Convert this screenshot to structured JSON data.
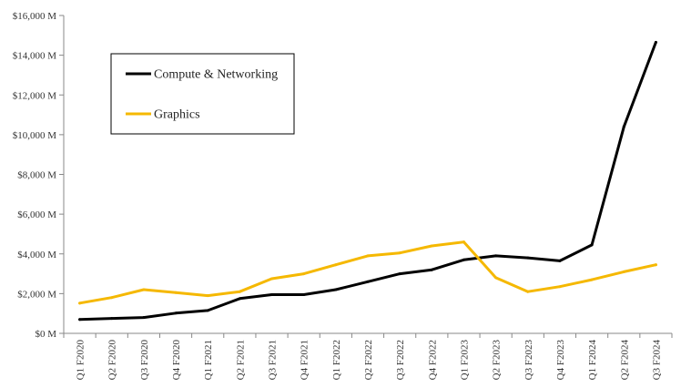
{
  "chart_data": {
    "type": "line",
    "title": "",
    "xlabel": "",
    "ylabel": "",
    "categories": [
      "Q1 F2020",
      "Q2 F2020",
      "Q3 F2020",
      "Q4 F2020",
      "Q1 F2021",
      "Q2 F2021",
      "Q3 F2021",
      "Q4 F2021",
      "Q1 F2022",
      "Q2 F2022",
      "Q3 F2022",
      "Q4 F2022",
      "Q1 F2023",
      "Q2 F2023",
      "Q3 F2023",
      "Q4 F2023",
      "Q1 F2024",
      "Q2 F2024",
      "Q3 F2024"
    ],
    "series": [
      {
        "name": "Compute & Networking",
        "color": "#000000",
        "values": [
          700,
          750,
          800,
          1020,
          1150,
          1750,
          1950,
          1950,
          2200,
          2600,
          3000,
          3200,
          3700,
          3900,
          3800,
          3650,
          4450,
          10400,
          14650
        ]
      },
      {
        "name": "Graphics",
        "color": "#F5B800",
        "values": [
          1520,
          1800,
          2200,
          2050,
          1900,
          2100,
          2750,
          3000,
          3450,
          3900,
          4050,
          4400,
          4600,
          2800,
          2100,
          2350,
          2700,
          3100,
          3450
        ]
      }
    ],
    "yticks": [
      0,
      2000,
      4000,
      6000,
      8000,
      10000,
      12000,
      14000,
      16000
    ],
    "ytick_labels": [
      "$0 M",
      "$2,000 M",
      "$4,000 M",
      "$6,000 M",
      "$8,000 M",
      "$10,000 M",
      "$12,000 M",
      "$14,000 M",
      "$16,000 M"
    ],
    "ylim": [
      0,
      16000
    ],
    "grid": false,
    "legend_position": "top-left"
  }
}
